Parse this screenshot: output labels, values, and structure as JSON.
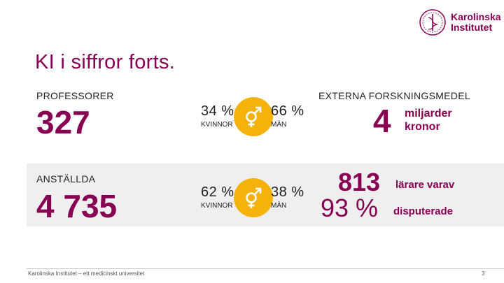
{
  "header": {
    "logo_line1": "Karolinska",
    "logo_line2": "Institutet"
  },
  "slide": {
    "title": "KI i siffror forts."
  },
  "professors": {
    "label": "PROFESSORER",
    "value": "327",
    "women_pct": "34 %",
    "women_label": "KVINNOR",
    "men_pct": "66 %",
    "men_label": "MÄN"
  },
  "employees": {
    "label": "ANSTÄLLDA",
    "value": "4 735",
    "women_pct": "62 %",
    "women_label": "KVINNOR",
    "men_pct": "38 %",
    "men_label": "MÄN"
  },
  "funding": {
    "label": "EXTERNA FORSKNINGSMEDEL",
    "value": "4",
    "unit_line1": "miljarder",
    "unit_line2": "kronor"
  },
  "teachers": {
    "value": "813",
    "text": "lärare varav",
    "pct": "93 %",
    "pct_text": "disputerade"
  },
  "footer": {
    "caption": "Karolinska Institutet – ett medicinskt universitet",
    "page_number": "3"
  },
  "colors": {
    "brand": "#870052",
    "accent": "#f5b20a",
    "band": "#efefef"
  },
  "icons": {
    "logo": "karolinska-seal-icon",
    "gender": "gender-symbol-icon"
  }
}
